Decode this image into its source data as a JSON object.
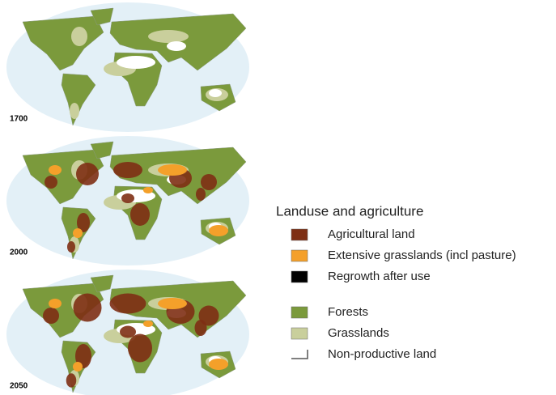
{
  "maps": [
    {
      "label": "1700"
    },
    {
      "label": "2000"
    },
    {
      "label": "2050"
    }
  ],
  "legend": {
    "title": "Landuse and agriculture",
    "items": [
      {
        "label": "Agricultural land",
        "color": "#7e2f14"
      },
      {
        "label": "Extensive grasslands (incl pasture)",
        "color": "#f4a02a"
      },
      {
        "label": "Regrowth after use",
        "color": "#000000"
      },
      {
        "label": "Forests",
        "color": "#7b9a3c"
      },
      {
        "label": "Grasslands",
        "color": "#c9cf9c"
      },
      {
        "label": "Non-productive land",
        "color": "#ffffff"
      }
    ]
  }
}
